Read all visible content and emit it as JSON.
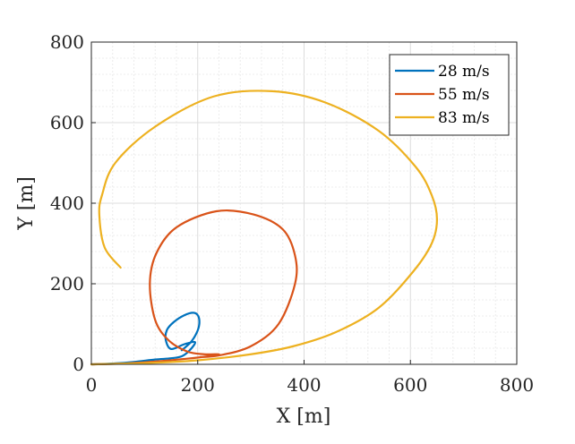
{
  "chart_data": {
    "type": "line",
    "xlabel": "X [m]",
    "ylabel": "Y [m]",
    "xlim": [
      0,
      800
    ],
    "ylim": [
      0,
      800
    ],
    "xticks": [
      "0",
      "200",
      "400",
      "600",
      "800"
    ],
    "yticks": [
      "0",
      "200",
      "400",
      "600",
      "800"
    ],
    "grid": true,
    "minor_grid": true,
    "legend_position": "top-right",
    "series": [
      {
        "name": "28 m/s",
        "color": "#0072BD",
        "x": [
          0,
          40,
          80,
          120,
          150,
          170,
          185,
          195,
          175,
          150,
          140,
          142,
          155,
          175,
          192,
          201,
          203,
          198,
          187,
          170
        ],
        "y": [
          0,
          2,
          6,
          12,
          15,
          20,
          35,
          55,
          50,
          38,
          60,
          85,
          105,
          122,
          128,
          120,
          100,
          78,
          55,
          35
        ]
      },
      {
        "name": "55 m/s",
        "color": "#D95319",
        "x": [
          0,
          60,
          120,
          180,
          220,
          240,
          212,
          180,
          145,
          120,
          110,
          122,
          160,
          235,
          305,
          360,
          383,
          383,
          352,
          300,
          240,
          205
        ],
        "y": [
          0,
          2,
          7,
          14,
          20,
          25,
          25,
          32,
          60,
          110,
          200,
          275,
          340,
          380,
          372,
          335,
          270,
          200,
          100,
          45,
          22,
          18
        ]
      },
      {
        "name": "83 m/s",
        "color": "#EDB120",
        "x": [
          0,
          100,
          200,
          300,
          380,
          460,
          540,
          605,
          640,
          650,
          640,
          610,
          540,
          440,
          340,
          230,
          120,
          45,
          20,
          15,
          25,
          55
        ],
        "y": [
          0,
          3,
          10,
          25,
          45,
          80,
          140,
          230,
          300,
          360,
          420,
          490,
          580,
          650,
          678,
          665,
          590,
          500,
          420,
          370,
          290,
          240
        ]
      }
    ]
  }
}
